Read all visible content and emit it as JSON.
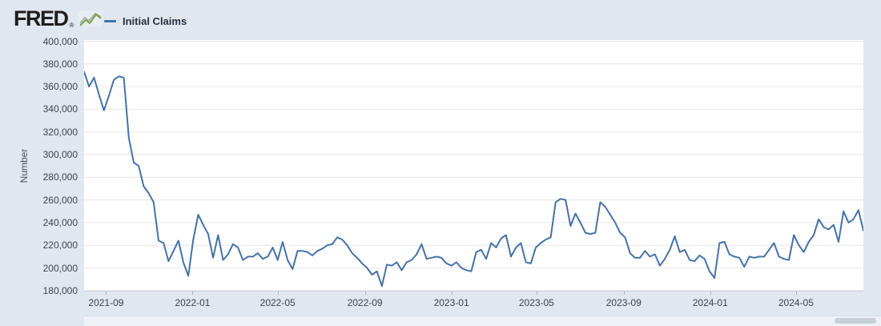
{
  "header": {
    "logo_text": "FRED",
    "logo_reg": "®",
    "legend_label": "Initial Claims"
  },
  "y_axis": {
    "title": "Number"
  },
  "colors": {
    "background": "#e1e7ef",
    "plot_background": "#ffffff",
    "grid": "#e6e6e6",
    "line": "#4572a7",
    "axis_text": "#3a4450"
  },
  "chart_data": {
    "type": "line",
    "title": "",
    "xlabel": "",
    "ylabel": "Number",
    "grid": "horizontal",
    "legend_position": "top-left",
    "ylim": [
      180000,
      400000
    ],
    "y_ticks": [
      400000,
      380000,
      360000,
      340000,
      320000,
      300000,
      280000,
      260000,
      240000,
      220000,
      200000,
      180000
    ],
    "x_ticks": [
      "2021-09",
      "2022-01",
      "2022-05",
      "2022-09",
      "2023-01",
      "2023-05",
      "2023-09",
      "2024-01",
      "2024-05"
    ],
    "series": [
      {
        "name": "Initial Claims",
        "color": "#4572a7",
        "frequency": "weekly",
        "start_date": "2021-08-01",
        "end_date": "2024-08-03",
        "values": [
          373000,
          360000,
          368000,
          353000,
          339000,
          352000,
          366000,
          369000,
          368000,
          315000,
          293000,
          290000,
          272000,
          266000,
          258000,
          224000,
          222000,
          206000,
          215000,
          224000,
          205000,
          193000,
          225000,
          247000,
          238000,
          230000,
          209000,
          229000,
          207000,
          212000,
          221000,
          218000,
          207000,
          210000,
          210000,
          213000,
          208000,
          210000,
          218000,
          207000,
          223000,
          207000,
          199000,
          215000,
          215000,
          214000,
          211000,
          215000,
          217000,
          220000,
          221000,
          227000,
          225000,
          220000,
          213000,
          209000,
          204000,
          200000,
          194000,
          197000,
          184000,
          203000,
          202000,
          205000,
          198000,
          205000,
          207000,
          212000,
          221000,
          208000,
          209000,
          210000,
          209000,
          204000,
          202000,
          205000,
          200000,
          198000,
          197000,
          214000,
          216000,
          208000,
          222000,
          218000,
          226000,
          229000,
          210000,
          218000,
          222000,
          205000,
          204000,
          218000,
          222000,
          225000,
          227000,
          258000,
          261000,
          260000,
          237000,
          248000,
          240000,
          231000,
          230000,
          231000,
          258000,
          254000,
          247000,
          240000,
          231000,
          227000,
          213000,
          209000,
          209000,
          215000,
          210000,
          212000,
          202000,
          208000,
          216000,
          228000,
          214000,
          216000,
          207000,
          206000,
          211000,
          208000,
          197000,
          191000,
          222000,
          223000,
          212000,
          210000,
          209000,
          201000,
          210000,
          209000,
          210000,
          210000,
          216000,
          222000,
          210000,
          208000,
          207000,
          229000,
          220000,
          214000,
          223000,
          229000,
          243000,
          236000,
          234000,
          238000,
          223000,
          250000,
          240000,
          243000,
          251000,
          233000
        ]
      }
    ]
  }
}
